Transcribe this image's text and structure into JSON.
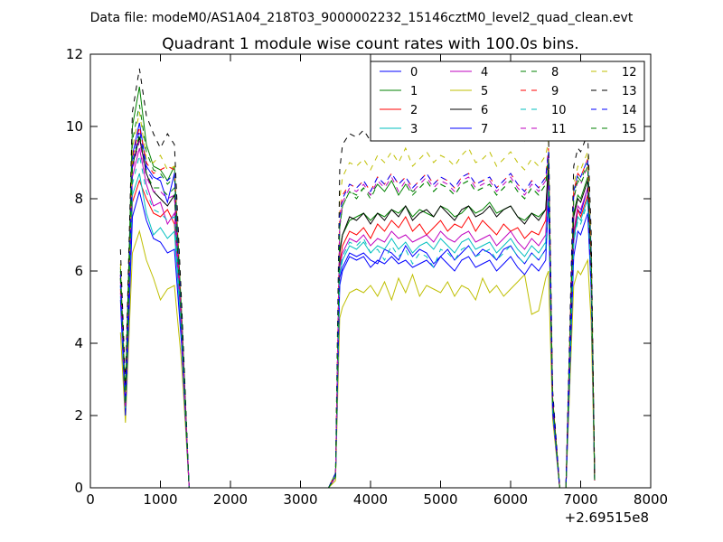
{
  "figure": {
    "suptitle": "Data file: modeM0/AS1A04_218T03_9000002232_15146cztM0_level2_quad_clean.evt",
    "title": "Quadrant 1 module wise count rates with 100.0s bins.",
    "x_offset_label": "+2.69515e8"
  },
  "chart_data": {
    "type": "line",
    "title": "Quadrant 1 module wise count rates with 100.0s bins.",
    "xlabel": "",
    "ylabel": "",
    "x_offset": 269515000,
    "xlim": [
      0,
      8000
    ],
    "ylim": [
      0,
      12
    ],
    "x_ticks": [
      0,
      1000,
      2000,
      3000,
      4000,
      5000,
      6000,
      7000,
      8000
    ],
    "y_ticks": [
      0,
      2,
      4,
      6,
      8,
      10,
      12
    ],
    "x_tick_labels": [
      "0",
      "1000",
      "2000",
      "3000",
      "4000",
      "5000",
      "6000",
      "7000",
      "8000"
    ],
    "y_tick_labels": [
      "0",
      "2",
      "4",
      "6",
      "8",
      "10",
      "12"
    ],
    "grid": false,
    "legend_position": "top-right",
    "legend_columns": 4,
    "x": [
      430,
      500,
      600,
      700,
      800,
      900,
      1000,
      1100,
      1200,
      1300,
      1410,
      1500,
      2000,
      3000,
      3400,
      3500,
      3560,
      3600,
      3700,
      3800,
      3900,
      4000,
      4100,
      4200,
      4300,
      4400,
      4500,
      4600,
      4700,
      4800,
      4900,
      5000,
      5100,
      5200,
      5300,
      5400,
      5500,
      5600,
      5700,
      5800,
      5900,
      6000,
      6100,
      6200,
      6300,
      6400,
      6500,
      6540,
      6600,
      6700,
      6790,
      6900,
      6960,
      7000,
      7100,
      7150,
      7200
    ],
    "series": [
      {
        "name": "0",
        "color": "#0000ff",
        "dash": "solid",
        "values": [
          5.6,
          2.2,
          9.2,
          10.1,
          8.9,
          8.6,
          8.5,
          7.9,
          8.7,
          4.6,
          0,
          0,
          0,
          0,
          0,
          0.3,
          5.8,
          6.1,
          6.5,
          6.4,
          6.5,
          6.3,
          6.2,
          6.6,
          6.5,
          6.3,
          6.7,
          6.4,
          6.6,
          6.5,
          6.2,
          6.4,
          6.6,
          6.3,
          6.5,
          6.7,
          6.4,
          6.6,
          6.5,
          6.3,
          6.6,
          6.7,
          6.4,
          6.2,
          6.5,
          6.3,
          6.6,
          8.6,
          2.2,
          0,
          0,
          6.8,
          7.7,
          7.6,
          8.3,
          5.9,
          0.2
        ]
      },
      {
        "name": "1",
        "color": "#008000",
        "dash": "solid",
        "values": [
          6.0,
          2.6,
          10.0,
          11.1,
          9.5,
          8.9,
          8.8,
          8.5,
          8.9,
          4.9,
          0,
          0,
          0,
          0,
          0,
          0.4,
          6.6,
          7.0,
          7.4,
          7.5,
          7.6,
          7.4,
          7.6,
          7.5,
          7.7,
          7.6,
          7.8,
          7.5,
          7.7,
          7.6,
          7.5,
          7.8,
          7.7,
          7.5,
          7.6,
          7.8,
          7.6,
          7.7,
          7.9,
          7.6,
          7.7,
          7.8,
          7.5,
          7.4,
          7.6,
          7.5,
          7.7,
          9.0,
          2.4,
          0,
          0,
          7.6,
          8.1,
          8.0,
          8.6,
          6.2,
          0.2
        ]
      },
      {
        "name": "2",
        "color": "#ff0000",
        "dash": "solid",
        "values": [
          5.5,
          2.1,
          7.9,
          8.5,
          8.0,
          7.6,
          7.5,
          7.7,
          7.3,
          4.3,
          0,
          0,
          0,
          0,
          0,
          0.3,
          6.2,
          6.7,
          7.1,
          7.0,
          7.2,
          6.9,
          7.3,
          7.1,
          7.4,
          7.2,
          7.5,
          7.1,
          7.3,
          7.0,
          7.2,
          7.4,
          7.1,
          7.3,
          7.2,
          7.5,
          7.1,
          7.4,
          7.2,
          7.0,
          7.3,
          7.1,
          7.2,
          6.9,
          7.1,
          7.0,
          7.4,
          8.4,
          2.3,
          0,
          0,
          7.0,
          7.7,
          7.5,
          8.1,
          5.8,
          0.2
        ]
      },
      {
        "name": "3",
        "color": "#00bfbf",
        "dash": "solid",
        "values": [
          5.3,
          2.0,
          8.1,
          8.7,
          7.6,
          7.0,
          7.2,
          6.9,
          7.1,
          4.2,
          0,
          0,
          0,
          0,
          0,
          0.3,
          5.9,
          6.3,
          6.7,
          6.6,
          6.8,
          6.5,
          6.7,
          6.6,
          6.9,
          6.6,
          6.8,
          6.5,
          6.7,
          6.8,
          6.6,
          6.9,
          6.7,
          6.5,
          6.8,
          6.9,
          6.6,
          6.7,
          6.8,
          6.5,
          6.7,
          6.9,
          6.6,
          6.4,
          6.7,
          6.5,
          6.8,
          8.5,
          2.2,
          0,
          0,
          6.9,
          7.5,
          7.4,
          8.0,
          5.7,
          0.2
        ]
      },
      {
        "name": "4",
        "color": "#bf00bf",
        "dash": "solid",
        "values": [
          5.4,
          2.1,
          8.6,
          9.4,
          8.4,
          7.8,
          7.9,
          7.3,
          7.6,
          4.4,
          0,
          0,
          0,
          0,
          0,
          0.3,
          6.1,
          6.5,
          6.9,
          6.8,
          7.0,
          6.7,
          6.9,
          6.8,
          7.1,
          6.9,
          7.0,
          6.8,
          6.9,
          7.0,
          6.8,
          7.1,
          6.9,
          6.8,
          7.0,
          7.1,
          6.8,
          6.9,
          7.0,
          6.7,
          6.9,
          7.1,
          6.8,
          6.6,
          6.9,
          6.7,
          7.0,
          8.7,
          2.3,
          0,
          0,
          7.1,
          7.8,
          7.7,
          8.3,
          5.9,
          0.2
        ]
      },
      {
        "name": "5",
        "color": "#bfbf00",
        "dash": "solid",
        "values": [
          4.3,
          1.8,
          6.5,
          7.1,
          6.3,
          5.8,
          5.2,
          5.5,
          5.6,
          3.5,
          0,
          0,
          0,
          0,
          0,
          0.2,
          4.7,
          5.0,
          5.4,
          5.5,
          5.4,
          5.6,
          5.3,
          5.7,
          5.2,
          5.8,
          5.4,
          5.9,
          5.3,
          5.6,
          5.5,
          5.4,
          5.7,
          5.3,
          5.6,
          5.5,
          5.2,
          5.8,
          5.4,
          5.6,
          5.3,
          5.5,
          5.7,
          5.9,
          4.8,
          4.9,
          5.8,
          6.0,
          1.9,
          0,
          0,
          5.6,
          6.0,
          5.9,
          6.3,
          4.6,
          0.2
        ]
      },
      {
        "name": "6",
        "color": "#000000",
        "dash": "solid",
        "values": [
          5.8,
          2.3,
          8.9,
          9.7,
          8.7,
          8.2,
          8.0,
          7.8,
          8.1,
          4.6,
          0,
          0,
          0,
          0,
          0,
          0.3,
          6.5,
          7.0,
          7.5,
          7.4,
          7.6,
          7.3,
          7.6,
          7.4,
          7.7,
          7.5,
          7.8,
          7.4,
          7.6,
          7.7,
          7.5,
          7.8,
          7.6,
          7.4,
          7.7,
          7.8,
          7.5,
          7.6,
          7.8,
          7.5,
          7.7,
          7.8,
          7.5,
          7.3,
          7.6,
          7.4,
          7.7,
          8.9,
          2.4,
          0,
          0,
          7.5,
          8.0,
          7.9,
          8.5,
          6.1,
          0.2
        ]
      },
      {
        "name": "7",
        "color": "#0000ff",
        "dash": "solid",
        "values": [
          5.2,
          2.0,
          7.5,
          8.2,
          7.4,
          6.9,
          6.8,
          6.5,
          6.6,
          4.0,
          0,
          0,
          0,
          0,
          0,
          0.3,
          5.6,
          6.0,
          6.4,
          6.3,
          6.4,
          6.1,
          6.3,
          6.2,
          6.4,
          6.2,
          6.3,
          6.1,
          6.2,
          6.3,
          6.1,
          6.4,
          6.2,
          6.0,
          6.3,
          6.4,
          6.1,
          6.2,
          6.3,
          6.0,
          6.2,
          6.4,
          6.1,
          5.9,
          6.2,
          6.0,
          6.3,
          8.0,
          2.1,
          0,
          0,
          6.4,
          7.1,
          7.0,
          7.6,
          5.5,
          0.2
        ]
      },
      {
        "name": "8",
        "color": "#008000",
        "dash": "dashed",
        "values": [
          6.1,
          2.5,
          9.6,
          10.6,
          9.3,
          8.8,
          8.7,
          8.4,
          8.6,
          4.8,
          0,
          0,
          0,
          0,
          0,
          0.4,
          7.2,
          7.8,
          8.2,
          8.0,
          8.3,
          8.1,
          8.4,
          8.2,
          8.5,
          8.1,
          8.4,
          8.2,
          8.3,
          8.5,
          8.2,
          8.4,
          8.3,
          8.1,
          8.4,
          8.5,
          8.2,
          8.3,
          8.4,
          8.1,
          8.3,
          8.5,
          8.2,
          8.0,
          8.3,
          8.1,
          8.4,
          9.3,
          2.5,
          0,
          0,
          8.1,
          8.6,
          8.5,
          9.0,
          6.5,
          0.2
        ]
      },
      {
        "name": "9",
        "color": "#ff0000",
        "dash": "dashed",
        "values": [
          5.9,
          2.3,
          9.1,
          10.0,
          9.0,
          8.7,
          8.8,
          8.9,
          8.8,
          4.7,
          0,
          0,
          0,
          0,
          0,
          0.4,
          7.6,
          8.1,
          8.4,
          8.3,
          8.5,
          8.2,
          8.6,
          8.4,
          8.7,
          8.4,
          8.6,
          8.3,
          8.5,
          8.7,
          8.4,
          8.6,
          8.5,
          8.3,
          8.6,
          8.7,
          8.4,
          8.5,
          8.6,
          8.3,
          8.5,
          8.7,
          8.4,
          8.2,
          8.5,
          8.3,
          8.6,
          9.4,
          2.5,
          0,
          0,
          8.2,
          8.7,
          8.6,
          9.1,
          6.6,
          0.2
        ]
      },
      {
        "name": "10",
        "color": "#00bfbf",
        "dash": "dashed",
        "values": [
          5.6,
          2.2,
          8.4,
          9.2,
          8.2,
          7.7,
          7.6,
          7.4,
          7.5,
          4.3,
          0,
          0,
          0,
          0,
          0,
          0.3,
          6.0,
          6.4,
          6.8,
          6.7,
          6.9,
          6.5,
          6.6,
          6.3,
          6.7,
          6.4,
          6.6,
          6.2,
          6.5,
          6.4,
          6.1,
          6.6,
          6.5,
          6.3,
          6.6,
          6.7,
          6.4,
          6.5,
          6.6,
          6.3,
          6.5,
          6.7,
          6.4,
          6.2,
          6.5,
          6.3,
          6.6,
          8.3,
          2.2,
          0,
          0,
          6.8,
          7.4,
          7.3,
          7.9,
          5.7,
          0.2
        ]
      },
      {
        "name": "11",
        "color": "#bf00bf",
        "dash": "dashed",
        "values": [
          5.7,
          2.2,
          8.8,
          9.6,
          8.6,
          8.2,
          8.2,
          8.0,
          8.1,
          4.5,
          0,
          0,
          0,
          0,
          0,
          0.3,
          7.3,
          7.9,
          8.3,
          8.2,
          8.4,
          8.1,
          8.5,
          8.3,
          8.6,
          8.2,
          8.5,
          8.2,
          8.4,
          8.6,
          8.3,
          8.5,
          8.4,
          8.2,
          8.5,
          8.6,
          8.3,
          8.4,
          8.5,
          8.2,
          8.4,
          8.6,
          8.3,
          8.1,
          8.4,
          8.2,
          8.5,
          9.2,
          2.4,
          0,
          0,
          8.0,
          8.5,
          8.4,
          8.9,
          6.4,
          0.2
        ]
      },
      {
        "name": "12",
        "color": "#bfbf00",
        "dash": "dashed",
        "values": [
          6.2,
          2.6,
          9.4,
          10.4,
          9.1,
          9.0,
          9.2,
          8.8,
          8.9,
          4.9,
          0,
          0,
          0,
          0,
          0,
          0.4,
          8.0,
          8.6,
          9.0,
          8.9,
          9.1,
          8.8,
          9.2,
          9.0,
          9.3,
          9.0,
          9.4,
          8.9,
          9.1,
          9.3,
          9.0,
          9.2,
          9.1,
          8.9,
          9.2,
          9.4,
          9.0,
          9.1,
          9.3,
          8.9,
          9.1,
          9.3,
          9.0,
          8.8,
          9.1,
          8.9,
          9.2,
          9.6,
          2.6,
          0,
          0,
          8.4,
          8.9,
          8.8,
          9.3,
          6.8,
          0.2
        ]
      },
      {
        "name": "13",
        "color": "#000000",
        "dash": "dashed",
        "values": [
          6.6,
          2.8,
          10.4,
          11.6,
          10.3,
          9.8,
          9.4,
          9.8,
          9.5,
          5.2,
          0,
          0,
          0,
          0,
          0,
          0.4,
          8.8,
          9.5,
          9.8,
          9.7,
          9.9,
          9.6,
          10.0,
          9.8,
          10.1,
          9.8,
          10.2,
          9.7,
          9.9,
          10.1,
          9.8,
          10.0,
          9.9,
          9.7,
          10.0,
          10.2,
          9.8,
          9.9,
          10.1,
          9.7,
          9.9,
          10.1,
          9.8,
          9.6,
          9.9,
          9.7,
          10.0,
          9.9,
          2.7,
          0,
          0,
          8.9,
          9.4,
          9.3,
          9.8,
          7.1,
          0.3
        ]
      },
      {
        "name": "14",
        "color": "#0000ff",
        "dash": "dashed",
        "values": [
          5.9,
          2.4,
          9.0,
          9.9,
          8.8,
          8.5,
          8.6,
          8.5,
          8.7,
          4.7,
          0,
          0,
          0,
          0,
          0,
          0.4,
          7.5,
          8.0,
          8.4,
          8.3,
          8.5,
          8.2,
          8.6,
          8.4,
          8.7,
          8.4,
          8.6,
          8.3,
          8.5,
          8.7,
          8.4,
          8.6,
          8.5,
          8.3,
          8.6,
          8.7,
          8.4,
          8.5,
          8.6,
          8.3,
          8.5,
          8.7,
          8.4,
          8.2,
          8.5,
          8.3,
          8.6,
          9.3,
          2.5,
          0,
          0,
          8.2,
          8.7,
          8.6,
          9.1,
          6.6,
          0.2
        ]
      },
      {
        "name": "15",
        "color": "#008000",
        "dash": "dashed",
        "values": [
          5.8,
          2.3,
          8.9,
          9.8,
          8.7,
          8.3,
          8.3,
          8.1,
          8.3,
          4.6,
          0,
          0,
          0,
          0,
          0,
          0.3,
          7.2,
          7.8,
          8.2,
          8.1,
          8.3,
          8.0,
          8.4,
          8.2,
          8.5,
          8.1,
          8.4,
          8.1,
          8.3,
          8.5,
          8.2,
          8.4,
          8.3,
          8.1,
          8.4,
          8.5,
          8.2,
          8.3,
          8.4,
          8.1,
          8.3,
          8.5,
          8.2,
          8.0,
          8.3,
          8.1,
          8.4,
          9.1,
          2.4,
          0,
          0,
          8.0,
          8.5,
          8.4,
          8.9,
          6.4,
          0.2
        ]
      }
    ]
  }
}
